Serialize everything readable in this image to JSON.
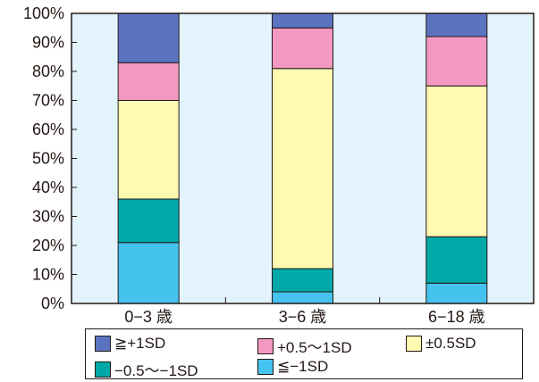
{
  "chart_data": {
    "type": "bar",
    "stacked": true,
    "title": "",
    "xlabel": "",
    "ylabel": "",
    "ylim": [
      0,
      100
    ],
    "yticks": [
      "0%",
      "10%",
      "20%",
      "30%",
      "40%",
      "50%",
      "60%",
      "70%",
      "80%",
      "90%",
      "100%"
    ],
    "categories": [
      "0−3 歳",
      "3−6 歳",
      "6−18 歳"
    ],
    "grid": false,
    "legend_position": "bottom",
    "plot_background": "#e3f3fb",
    "series": [
      {
        "name": "≦−1SD",
        "color": "#45c3ef",
        "values": [
          21,
          4,
          7
        ]
      },
      {
        "name": "−0.5〜−1SD",
        "color": "#00a9a8",
        "values": [
          15,
          8,
          16
        ]
      },
      {
        "name": "±0.5SD",
        "color": "#fff9b1",
        "values": [
          34,
          69,
          52
        ]
      },
      {
        "name": "+0.5〜1SD",
        "color": "#f399c1",
        "values": [
          13,
          14,
          17
        ]
      },
      {
        "name": "≧+1SD",
        "color": "#5b73c1",
        "values": [
          17,
          5,
          8
        ]
      }
    ]
  },
  "legend": {
    "items": [
      {
        "label": "≧+1SD",
        "color": "#5b73c1"
      },
      {
        "label": "+0.5〜1SD",
        "color": "#f399c1"
      },
      {
        "label": "±0.5SD",
        "color": "#fff9b1"
      },
      {
        "label": "−0.5〜−1SD",
        "color": "#00a9a8"
      },
      {
        "label": "≦−1SD",
        "color": "#45c3ef"
      }
    ]
  }
}
